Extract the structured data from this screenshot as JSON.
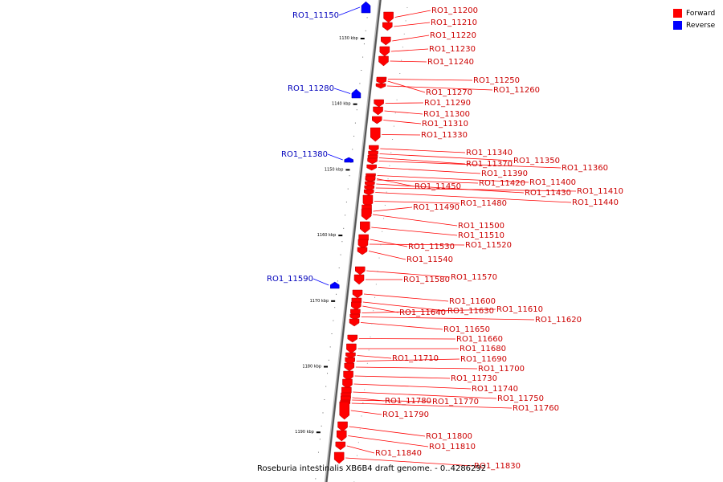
{
  "caption": "Roseburia intestinalis XB6B4 draft genome. - 0..4286292",
  "legend": {
    "forward": "Forward",
    "reverse": "Reverse"
  },
  "colors": {
    "forward": "#ff0000",
    "reverse": "#0000ff",
    "forward_label": "#cc0000",
    "reverse_label": "#0000bb",
    "axis": "#555555"
  },
  "ticks": [
    {
      "label": "1130 kbp",
      "pos": 1130
    },
    {
      "label": "1140 kbp",
      "pos": 1140
    },
    {
      "label": "1150 kbp",
      "pos": 1150
    },
    {
      "label": "1160 kbp",
      "pos": 1160
    },
    {
      "label": "1170 kbp",
      "pos": 1170
    },
    {
      "label": "1180 kbp",
      "pos": 1180
    },
    {
      "label": "1190 kbp",
      "pos": 1190
    }
  ],
  "genes": [
    {
      "id": "RO1_11150",
      "strand": "reverse"
    },
    {
      "id": "RO1_11200",
      "strand": "forward"
    },
    {
      "id": "RO1_11210",
      "strand": "forward"
    },
    {
      "id": "RO1_11220",
      "strand": "forward"
    },
    {
      "id": "RO1_11230",
      "strand": "forward"
    },
    {
      "id": "RO1_11240",
      "strand": "forward"
    },
    {
      "id": "RO1_11250",
      "strand": "forward"
    },
    {
      "id": "RO1_11260",
      "strand": "forward"
    },
    {
      "id": "RO1_11270",
      "strand": "forward"
    },
    {
      "id": "RO1_11280",
      "strand": "reverse"
    },
    {
      "id": "RO1_11290",
      "strand": "forward"
    },
    {
      "id": "RO1_11300",
      "strand": "forward"
    },
    {
      "id": "RO1_11310",
      "strand": "forward"
    },
    {
      "id": "RO1_11330",
      "strand": "forward"
    },
    {
      "id": "RO1_11340",
      "strand": "forward"
    },
    {
      "id": "RO1_11380",
      "strand": "reverse"
    },
    {
      "id": "RO1_11350",
      "strand": "forward"
    },
    {
      "id": "RO1_11370",
      "strand": "forward"
    },
    {
      "id": "RO1_11360",
      "strand": "forward"
    },
    {
      "id": "RO1_11390",
      "strand": "forward"
    },
    {
      "id": "RO1_11400",
      "strand": "forward"
    },
    {
      "id": "RO1_11420",
      "strand": "forward"
    },
    {
      "id": "RO1_11450",
      "strand": "forward"
    },
    {
      "id": "RO1_11430",
      "strand": "forward"
    },
    {
      "id": "RO1_11410",
      "strand": "forward"
    },
    {
      "id": "RO1_11440",
      "strand": "forward"
    },
    {
      "id": "RO1_11480",
      "strand": "forward"
    },
    {
      "id": "RO1_11490",
      "strand": "forward"
    },
    {
      "id": "RO1_11500",
      "strand": "forward"
    },
    {
      "id": "RO1_11510",
      "strand": "forward"
    },
    {
      "id": "RO1_11530",
      "strand": "forward"
    },
    {
      "id": "RO1_11520",
      "strand": "forward"
    },
    {
      "id": "RO1_11540",
      "strand": "forward"
    },
    {
      "id": "RO1_11590",
      "strand": "reverse"
    },
    {
      "id": "RO1_11570",
      "strand": "forward"
    },
    {
      "id": "RO1_11580",
      "strand": "forward"
    },
    {
      "id": "RO1_11600",
      "strand": "forward"
    },
    {
      "id": "RO1_11630",
      "strand": "forward"
    },
    {
      "id": "RO1_11640",
      "strand": "forward"
    },
    {
      "id": "RO1_11610",
      "strand": "forward"
    },
    {
      "id": "RO1_11620",
      "strand": "forward"
    },
    {
      "id": "RO1_11650",
      "strand": "forward"
    },
    {
      "id": "RO1_11660",
      "strand": "forward"
    },
    {
      "id": "RO1_11680",
      "strand": "forward"
    },
    {
      "id": "RO1_11710",
      "strand": "forward"
    },
    {
      "id": "RO1_11690",
      "strand": "forward"
    },
    {
      "id": "RO1_11700",
      "strand": "forward"
    },
    {
      "id": "RO1_11730",
      "strand": "forward"
    },
    {
      "id": "RO1_11740",
      "strand": "forward"
    },
    {
      "id": "RO1_11750",
      "strand": "forward"
    },
    {
      "id": "RO1_11780",
      "strand": "forward"
    },
    {
      "id": "RO1_11770",
      "strand": "forward"
    },
    {
      "id": "RO1_11760",
      "strand": "forward"
    },
    {
      "id": "RO1_11790",
      "strand": "forward"
    },
    {
      "id": "RO1_11800",
      "strand": "forward"
    },
    {
      "id": "RO1_11810",
      "strand": "forward"
    },
    {
      "id": "RO1_11840",
      "strand": "forward"
    },
    {
      "id": "RO1_11830",
      "strand": "forward"
    }
  ]
}
